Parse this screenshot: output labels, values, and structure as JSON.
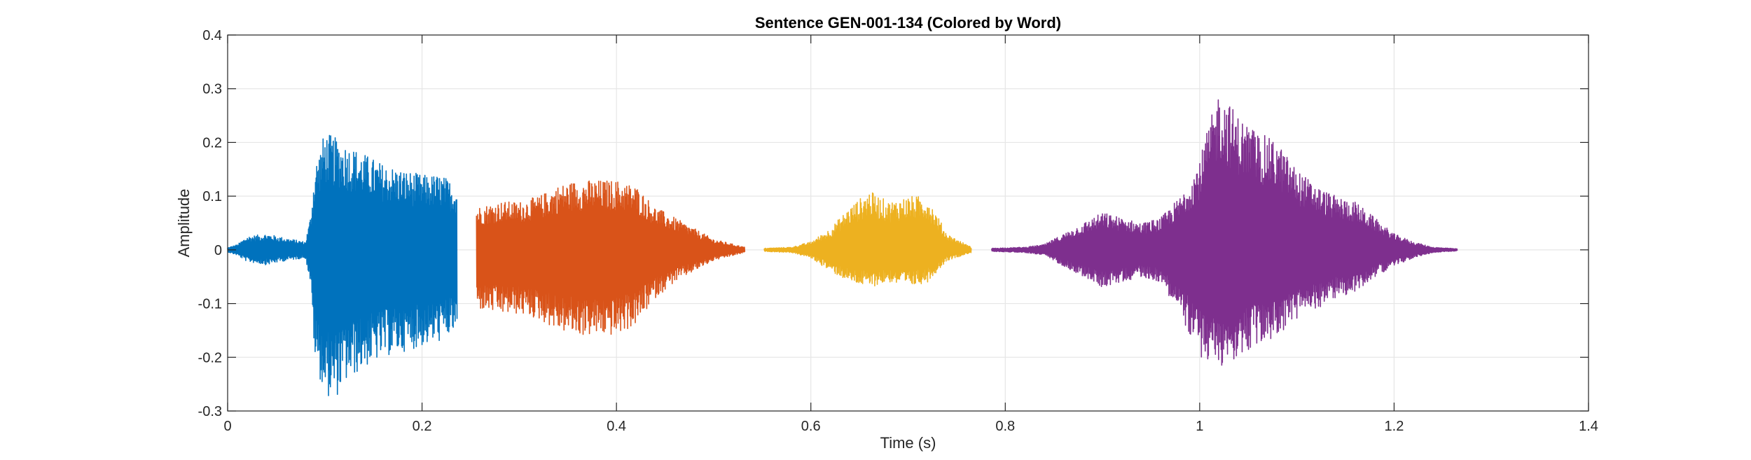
{
  "chart_data": {
    "type": "line",
    "title": "Sentence GEN-001-134 (Colored by Word)",
    "xlabel": "Time (s)",
    "ylabel": "Amplitude",
    "xlim": [
      0,
      1.4
    ],
    "ylim": [
      -0.3,
      0.4
    ],
    "xticks": [
      0,
      0.2,
      0.4,
      0.6,
      0.8,
      1,
      1.2,
      1.4
    ],
    "xtick_labels": [
      "0",
      "0.2",
      "0.4",
      "0.6",
      "0.8",
      "1",
      "1.2",
      "1.4"
    ],
    "yticks": [
      -0.3,
      -0.2,
      -0.1,
      0,
      0.1,
      0.2,
      0.3,
      0.4
    ],
    "ytick_labels": [
      "-0.3",
      "-0.2",
      "-0.1",
      "0",
      "0.1",
      "0.2",
      "0.3",
      "0.4"
    ],
    "grid": true,
    "legend": "none",
    "segments": [
      {
        "color": "#0072BD",
        "start": 0.0,
        "end": 0.236,
        "envelope": [
          [
            0.0,
            0.004,
            0.004
          ],
          [
            0.01,
            0.01,
            0.01
          ],
          [
            0.02,
            0.025,
            0.022
          ],
          [
            0.04,
            0.03,
            0.028
          ],
          [
            0.06,
            0.022,
            0.02
          ],
          [
            0.08,
            0.015,
            0.015
          ],
          [
            0.085,
            0.06,
            0.06
          ],
          [
            0.09,
            0.16,
            0.21
          ],
          [
            0.1,
            0.22,
            0.27
          ],
          [
            0.11,
            0.21,
            0.28
          ],
          [
            0.12,
            0.2,
            0.25
          ],
          [
            0.14,
            0.18,
            0.22
          ],
          [
            0.16,
            0.16,
            0.2
          ],
          [
            0.18,
            0.15,
            0.19
          ],
          [
            0.2,
            0.14,
            0.18
          ],
          [
            0.22,
            0.14,
            0.17
          ],
          [
            0.236,
            0.12,
            0.15
          ]
        ]
      },
      {
        "color": "#D95319",
        "start": 0.256,
        "end": 0.532,
        "envelope": [
          [
            0.256,
            0.08,
            0.11
          ],
          [
            0.28,
            0.09,
            0.12
          ],
          [
            0.3,
            0.09,
            0.12
          ],
          [
            0.32,
            0.1,
            0.13
          ],
          [
            0.34,
            0.12,
            0.15
          ],
          [
            0.36,
            0.13,
            0.16
          ],
          [
            0.38,
            0.13,
            0.16
          ],
          [
            0.4,
            0.13,
            0.16
          ],
          [
            0.42,
            0.12,
            0.14
          ],
          [
            0.44,
            0.08,
            0.09
          ],
          [
            0.46,
            0.06,
            0.06
          ],
          [
            0.48,
            0.04,
            0.04
          ],
          [
            0.5,
            0.02,
            0.02
          ],
          [
            0.532,
            0.005,
            0.005
          ]
        ]
      },
      {
        "color": "#EDB120",
        "start": 0.552,
        "end": 0.765,
        "envelope": [
          [
            0.552,
            0.003,
            0.003
          ],
          [
            0.58,
            0.005,
            0.005
          ],
          [
            0.6,
            0.015,
            0.015
          ],
          [
            0.62,
            0.04,
            0.04
          ],
          [
            0.64,
            0.08,
            0.06
          ],
          [
            0.66,
            0.11,
            0.07
          ],
          [
            0.68,
            0.09,
            0.06
          ],
          [
            0.7,
            0.1,
            0.07
          ],
          [
            0.72,
            0.1,
            0.06
          ],
          [
            0.74,
            0.03,
            0.02
          ],
          [
            0.765,
            0.005,
            0.005
          ]
        ]
      },
      {
        "color": "#7E2F8E",
        "start": 0.786,
        "end": 1.265,
        "envelope": [
          [
            0.786,
            0.003,
            0.003
          ],
          [
            0.82,
            0.005,
            0.005
          ],
          [
            0.84,
            0.01,
            0.01
          ],
          [
            0.86,
            0.03,
            0.03
          ],
          [
            0.88,
            0.05,
            0.05
          ],
          [
            0.9,
            0.07,
            0.07
          ],
          [
            0.92,
            0.06,
            0.06
          ],
          [
            0.94,
            0.05,
            0.05
          ],
          [
            0.96,
            0.06,
            0.06
          ],
          [
            0.98,
            0.1,
            0.12
          ],
          [
            1.0,
            0.17,
            0.2
          ],
          [
            1.02,
            0.3,
            0.22
          ],
          [
            1.04,
            0.25,
            0.2
          ],
          [
            1.06,
            0.22,
            0.18
          ],
          [
            1.08,
            0.2,
            0.16
          ],
          [
            1.1,
            0.15,
            0.13
          ],
          [
            1.12,
            0.12,
            0.11
          ],
          [
            1.14,
            0.1,
            0.09
          ],
          [
            1.16,
            0.09,
            0.08
          ],
          [
            1.18,
            0.06,
            0.05
          ],
          [
            1.2,
            0.03,
            0.03
          ],
          [
            1.22,
            0.015,
            0.015
          ],
          [
            1.24,
            0.005,
            0.005
          ],
          [
            1.265,
            0.002,
            0.002
          ]
        ]
      }
    ]
  }
}
